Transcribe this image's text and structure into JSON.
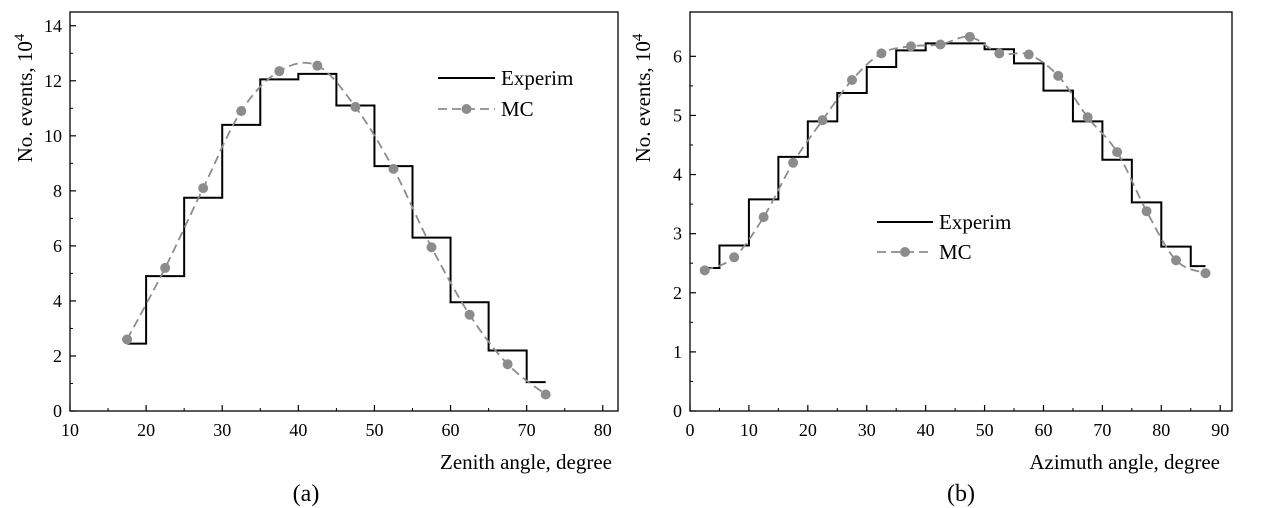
{
  "chart_data": [
    {
      "type": "line",
      "panel_label": "(a)",
      "xlabel": "Zenith angle, degree",
      "ylabel": "No. events, 10",
      "ylabel_exp": "4",
      "xlim": [
        10,
        82
      ],
      "ylim": [
        0,
        14.5
      ],
      "x_ticks": [
        10,
        20,
        30,
        40,
        50,
        60,
        70,
        80
      ],
      "y_ticks": [
        0,
        2,
        4,
        6,
        8,
        10,
        12,
        14
      ],
      "grid": false,
      "legend_position": "top-right",
      "series": [
        {
          "name": "Experim",
          "style": "step-histogram",
          "color": "#000000",
          "bin_edges": [
            17.5,
            20,
            25,
            30,
            35,
            40,
            45,
            50,
            55,
            60,
            65,
            70,
            72.5
          ],
          "values": [
            2.45,
            4.9,
            7.75,
            10.4,
            12.05,
            12.25,
            11.1,
            8.9,
            6.3,
            3.95,
            2.2,
            1.05
          ]
        },
        {
          "name": "MC",
          "style": "dashed-dots",
          "color": "#8c8c8c",
          "x": [
            17.5,
            22.5,
            27.5,
            32.5,
            37.5,
            42.5,
            47.5,
            52.5,
            57.5,
            62.5,
            67.5,
            72.5
          ],
          "values": [
            2.6,
            5.2,
            8.1,
            10.9,
            12.35,
            12.55,
            11.05,
            8.8,
            5.95,
            3.5,
            1.7,
            0.6
          ]
        }
      ]
    },
    {
      "type": "line",
      "panel_label": "(b)",
      "xlabel": "Azimuth angle, degree",
      "ylabel": "No. events, 10",
      "ylabel_exp": "4",
      "xlim": [
        0,
        92
      ],
      "ylim": [
        0,
        6.75
      ],
      "x_ticks": [
        0,
        10,
        20,
        30,
        40,
        50,
        60,
        70,
        80,
        90
      ],
      "y_ticks": [
        0,
        1,
        2,
        3,
        4,
        5,
        6
      ],
      "grid": false,
      "legend_position": "center-left",
      "series": [
        {
          "name": "Experim",
          "style": "step-histogram",
          "color": "#000000",
          "bin_edges": [
            2.5,
            5,
            10,
            15,
            20,
            25,
            30,
            35,
            40,
            45,
            50,
            55,
            60,
            65,
            70,
            75,
            80,
            85,
            87.5
          ],
          "values": [
            2.42,
            2.8,
            3.58,
            4.3,
            4.9,
            5.38,
            5.82,
            6.1,
            6.22,
            6.22,
            6.12,
            5.88,
            5.42,
            4.9,
            4.25,
            3.53,
            2.78,
            2.45
          ]
        },
        {
          "name": "MC",
          "style": "dashed-dots",
          "color": "#8c8c8c",
          "x": [
            2.5,
            7.5,
            12.5,
            17.5,
            22.5,
            27.5,
            32.5,
            37.5,
            42.5,
            47.5,
            52.5,
            57.5,
            62.5,
            67.5,
            72.5,
            77.5,
            82.5,
            87.5
          ],
          "values": [
            2.38,
            2.6,
            3.28,
            4.2,
            4.92,
            5.6,
            6.05,
            6.17,
            6.2,
            6.33,
            6.05,
            6.03,
            5.67,
            4.97,
            4.38,
            3.38,
            2.55,
            2.33
          ]
        }
      ]
    }
  ]
}
